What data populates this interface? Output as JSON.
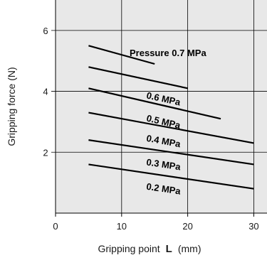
{
  "chart_data": {
    "type": "line",
    "title": "",
    "xlabel_parts": [
      "Gripping point",
      "L",
      "(mm)"
    ],
    "ylabel": "Gripping force  (N)",
    "xlim": [
      0,
      32
    ],
    "ylim": [
      0,
      7
    ],
    "x_ticks": [
      0,
      10,
      20,
      30
    ],
    "y_ticks": [
      2,
      4,
      6
    ],
    "grid": true,
    "legend": "none",
    "colors": {
      "plot_background": "#e8e8e8",
      "line": "#000000",
      "grid": "#000000"
    },
    "series": [
      {
        "name": "Pressure 0.7 MPa",
        "x": [
          5,
          15
        ],
        "y": [
          5.5,
          4.9
        ]
      },
      {
        "name": "0.6 MPa",
        "x": [
          5,
          20
        ],
        "y": [
          4.8,
          4.1
        ]
      },
      {
        "name": "0.5 MPa",
        "x": [
          5,
          25
        ],
        "y": [
          4.1,
          3.1
        ]
      },
      {
        "name": "0.4 MPa",
        "x": [
          5,
          30
        ],
        "y": [
          3.3,
          2.3
        ]
      },
      {
        "name": "0.3 MPa",
        "x": [
          5,
          30
        ],
        "y": [
          2.4,
          1.6
        ]
      },
      {
        "name": "0.2 MPa",
        "x": [
          5,
          30
        ],
        "y": [
          1.6,
          0.8
        ]
      }
    ]
  }
}
